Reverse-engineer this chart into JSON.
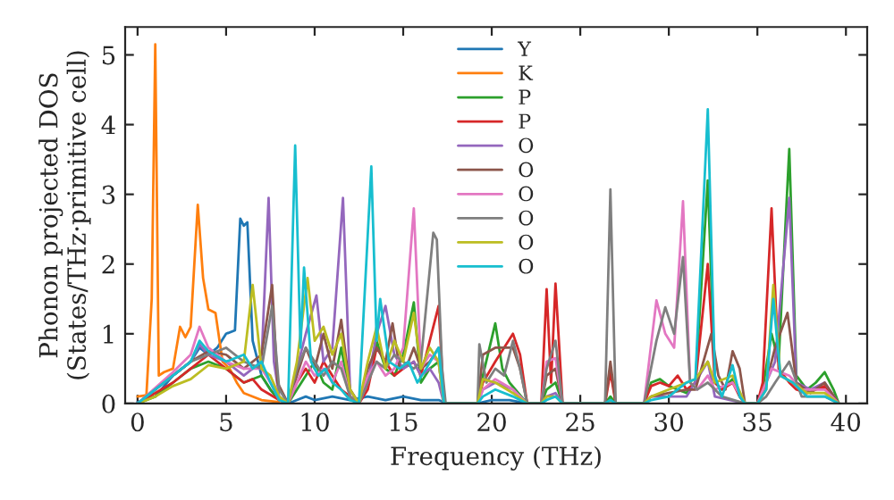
{
  "chart_data": {
    "type": "line",
    "xlabel": "Frequency (THz)",
    "ylabel": "Phonon projected DOS\n(States/THz·primitive cell)",
    "xlim": [
      -0.7,
      41.2
    ],
    "ylim": [
      0,
      5.4
    ],
    "xticks": [
      0,
      5,
      10,
      15,
      20,
      25,
      30,
      35,
      40
    ],
    "yticks": [
      0,
      1,
      2,
      3,
      4,
      5
    ],
    "grid": false,
    "legend": "top",
    "marker": "none",
    "line_style": "solid",
    "series": [
      {
        "name": "Y",
        "color": "#1f77b4",
        "x": [
          0,
          1,
          2,
          3,
          3.5,
          4,
          4.5,
          5,
          5.5,
          5.8,
          6,
          6.2,
          6.5,
          7,
          7.5,
          8,
          8.5,
          9,
          9.5,
          10,
          11,
          12,
          13,
          14,
          15,
          16,
          17,
          17.5,
          19.2,
          20,
          21,
          22
        ],
        "values": [
          0.02,
          0.1,
          0.4,
          0.6,
          0.8,
          0.7,
          0.8,
          1.0,
          1.05,
          2.65,
          2.55,
          2.6,
          0.9,
          0.4,
          0.2,
          0.05,
          0,
          0.05,
          0.1,
          0.05,
          0.1,
          0.05,
          0.1,
          0.05,
          0.1,
          0.05,
          0.05,
          0,
          0,
          0.05,
          0.05,
          0
        ]
      },
      {
        "name": "K",
        "color": "#ff7f0e",
        "x": [
          0,
          0.5,
          0.8,
          1.0,
          1.2,
          1.5,
          2,
          2.4,
          2.7,
          3,
          3.4,
          3.7,
          4.0,
          4.4,
          4.8,
          5.2,
          5.6,
          6,
          7,
          8
        ],
        "values": [
          0.1,
          0.12,
          1.5,
          5.15,
          0.4,
          0.45,
          0.5,
          1.1,
          0.95,
          1.1,
          2.85,
          1.8,
          1.35,
          1.3,
          0.6,
          0.5,
          0.3,
          0.15,
          0.05,
          0.02
        ]
      },
      {
        "name": "P",
        "color": "#2ca02c",
        "x": [
          0,
          1,
          2,
          3,
          4,
          5,
          6,
          7,
          7.5,
          8,
          8.5,
          9,
          9.5,
          10,
          10.5,
          11,
          11.5,
          12,
          12.5,
          13,
          13.5,
          14,
          14.5,
          15,
          15.6,
          16,
          16.5,
          17,
          17.3,
          19.2,
          19.5,
          20.2,
          20.6,
          21,
          21.5,
          22,
          22.8,
          23.1,
          23.6,
          24,
          26.4,
          26.7,
          27,
          28.6,
          29,
          29.5,
          30,
          30.5,
          31,
          31.5,
          32.2,
          32.6,
          33,
          33.6,
          34,
          34.3,
          35,
          35.3,
          35.8,
          36.2,
          36.8,
          37.2,
          37.8,
          38.3,
          38.8,
          39.3,
          39.6
        ],
        "values": [
          0,
          0.1,
          0.3,
          0.5,
          0.6,
          0.5,
          0.3,
          0.4,
          0.2,
          0.05,
          0,
          0.2,
          0.4,
          0.6,
          0.3,
          0.2,
          0.8,
          0.1,
          0,
          0.3,
          0.9,
          0.5,
          0.4,
          0.7,
          1.45,
          0.3,
          0.5,
          0.6,
          0,
          0,
          0.4,
          1.15,
          0.5,
          0.3,
          0.15,
          0,
          0,
          0.2,
          0.3,
          0,
          0,
          0.1,
          0,
          0,
          0.3,
          0.35,
          0.25,
          0.2,
          0.15,
          0.3,
          3.2,
          0.3,
          0.2,
          0.35,
          0.1,
          0,
          0,
          0.2,
          1.0,
          0.6,
          3.65,
          0.4,
          0.2,
          0.3,
          0.45,
          0.2,
          0
        ]
      },
      {
        "name": "P",
        "color": "#d62728",
        "x": [
          0,
          2,
          3,
          4,
          5,
          6,
          6.5,
          7,
          8,
          8.5,
          9,
          9.5,
          10,
          10.5,
          11,
          11.5,
          12,
          12.5,
          13,
          13.5,
          14,
          14.5,
          15,
          15.6,
          16,
          16.5,
          17,
          17.3,
          19.2,
          19.5,
          20.2,
          21.2,
          21.6,
          22,
          22.8,
          23.1,
          23.35,
          23.6,
          24,
          26.4,
          26.7,
          27,
          28.6,
          29,
          29.5,
          30,
          30.5,
          31,
          31.5,
          32.2,
          32.6,
          33,
          33.6,
          34,
          34.3,
          35,
          35.3,
          35.8,
          36.2,
          36.8,
          37.2,
          37.8,
          38.3,
          38.8,
          39.3,
          39.6
        ],
        "values": [
          0,
          0.3,
          0.5,
          0.7,
          0.5,
          0.3,
          0.35,
          0.2,
          0.05,
          0,
          0.3,
          0.5,
          0.3,
          0.6,
          0.4,
          0.2,
          0.1,
          0,
          0.2,
          0.8,
          0.6,
          0.4,
          0.5,
          0.6,
          0.4,
          0.9,
          1.4,
          0,
          0,
          0.3,
          0.6,
          1.0,
          0.7,
          0,
          0,
          1.64,
          0.3,
          1.72,
          0,
          0,
          0.45,
          0,
          0,
          0.25,
          0.3,
          0.25,
          0.4,
          0.2,
          0.3,
          2.0,
          0.3,
          0.2,
          0.3,
          0.1,
          0,
          0,
          0.3,
          2.8,
          0.5,
          0.3,
          0.2,
          0.15,
          0.2,
          0.25,
          0.1,
          0
        ]
      },
      {
        "name": "O",
        "color": "#9467bd",
        "x": [
          0,
          2,
          3,
          3.5,
          4,
          5,
          6,
          7,
          7.4,
          7.7,
          8,
          8.5,
          9,
          9.5,
          10.1,
          10.5,
          11,
          11.6,
          12,
          12.5,
          13,
          13.5,
          14,
          14.5,
          15,
          15.6,
          16,
          16.5,
          17,
          17.3,
          19.2,
          19.5,
          20.2,
          21.2,
          22,
          22.8,
          23.1,
          23.6,
          24,
          28.6,
          29,
          30,
          31,
          32.2,
          32.6,
          34.3,
          35,
          35.5,
          36,
          36.8,
          37.2,
          38,
          38.8,
          39.6
        ],
        "values": [
          0,
          0.4,
          0.6,
          0.85,
          0.7,
          0.6,
          0.4,
          0.6,
          2.95,
          0.6,
          0.1,
          0,
          0.5,
          1.0,
          1.55,
          0.6,
          0.8,
          2.95,
          0.2,
          0,
          0.3,
          1.0,
          1.4,
          0.7,
          0.5,
          0.6,
          0.4,
          0.5,
          0.3,
          0,
          0,
          0.2,
          0.3,
          0.2,
          0,
          0,
          0.1,
          0.15,
          0,
          0,
          0.1,
          0.1,
          0.1,
          0.6,
          0.1,
          0,
          0,
          0.3,
          0.6,
          2.95,
          0.3,
          0.2,
          0.3,
          0
        ]
      },
      {
        "name": "O",
        "color": "#8c564b",
        "x": [
          0,
          2,
          3,
          4,
          5,
          6,
          7,
          7.6,
          7.9,
          8.5,
          9,
          9.5,
          10,
          10.5,
          11,
          11.5,
          12,
          12.5,
          13,
          13.5,
          14,
          14.4,
          14.8,
          15.3,
          15.6,
          16,
          16.5,
          17,
          17.3,
          19.2,
          19.5,
          20.2,
          21.2,
          21.6,
          22,
          22.8,
          23.1,
          23.6,
          24,
          26.4,
          26.7,
          27,
          28.6,
          29,
          30,
          31,
          31.5,
          32.4,
          32.8,
          33.2,
          33.6,
          34,
          34.3,
          35,
          35.5,
          36,
          36.7,
          37.2,
          38,
          38.8,
          39.6
        ],
        "values": [
          0,
          0.4,
          0.6,
          0.75,
          0.7,
          0.5,
          0.7,
          1.7,
          0.3,
          0,
          0.4,
          0.8,
          0.5,
          1.0,
          0.5,
          1.2,
          0.2,
          0,
          0.5,
          0.8,
          0.6,
          1.15,
          0.5,
          0.6,
          0.8,
          0.5,
          0.6,
          0.8,
          0,
          0,
          0.7,
          0.8,
          0.8,
          0.5,
          0,
          0,
          0.4,
          0.5,
          0,
          0,
          0.6,
          0,
          0,
          0.1,
          0.15,
          0.2,
          0.2,
          1.0,
          0.4,
          0.2,
          0.75,
          0.5,
          0,
          0,
          0.3,
          0.8,
          1.3,
          0.3,
          0.15,
          0.3,
          0
        ]
      },
      {
        "name": "O",
        "color": "#e377c2",
        "x": [
          0,
          2,
          3,
          3.5,
          4,
          5,
          6,
          7,
          7.5,
          8,
          8.5,
          9,
          9.5,
          10,
          10.5,
          11,
          11.5,
          12,
          12.5,
          13,
          13.5,
          14,
          14.5,
          15,
          15.6,
          16,
          16.5,
          17,
          17.3,
          19.2,
          19.5,
          20.2,
          21.2,
          22,
          22.8,
          23.1,
          23.6,
          24,
          28.6,
          29.3,
          29.8,
          30.3,
          30.8,
          31.2,
          31.6,
          32.2,
          32.6,
          33.6,
          34.3,
          35,
          35.8,
          36.8,
          37.5,
          38.8,
          39.6
        ],
        "values": [
          0,
          0.45,
          0.7,
          1.1,
          0.8,
          0.6,
          0.5,
          0.5,
          0.3,
          0.05,
          0,
          0.3,
          0.6,
          0.4,
          0.5,
          0.3,
          0.6,
          0.1,
          0,
          0.4,
          0.6,
          0.4,
          0.5,
          0.8,
          2.8,
          0.5,
          0.7,
          0.6,
          0,
          0,
          0.2,
          0.35,
          0.2,
          0,
          0,
          0.6,
          0.65,
          0,
          0,
          1.48,
          1.0,
          0.8,
          2.9,
          0.3,
          0.2,
          0.4,
          0.2,
          0.3,
          0,
          0,
          0.5,
          0.4,
          0.2,
          0.2,
          0
        ]
      },
      {
        "name": "O",
        "color": "#7f7f7f",
        "x": [
          0,
          2,
          3,
          4,
          5,
          6,
          7,
          7.6,
          8,
          8.5,
          9,
          9.5,
          10,
          10.5,
          11,
          11.5,
          12,
          12.5,
          13,
          13.5,
          14,
          14.5,
          15,
          15.6,
          16,
          16.7,
          16.9,
          17.2,
          17.4,
          19.2,
          19.3,
          19.7,
          20.2,
          20.7,
          21.2,
          21.6,
          22,
          22.8,
          23.1,
          23.6,
          24,
          26.4,
          26.7,
          27,
          28.6,
          29.3,
          29.8,
          30.3,
          30.8,
          31.2,
          31.6,
          32.2,
          33,
          34.3,
          35,
          35.5,
          36,
          36.8,
          37.5,
          38.8,
          39.6
        ],
        "values": [
          0,
          0.4,
          0.6,
          0.7,
          0.8,
          0.6,
          0.5,
          1.4,
          0.2,
          0,
          0.5,
          0.8,
          0.6,
          0.4,
          0.6,
          0.5,
          0.1,
          0,
          0.3,
          0.6,
          0.5,
          0.7,
          0.6,
          0.5,
          0.6,
          2.45,
          2.35,
          0.5,
          0,
          0,
          0.85,
          0.3,
          0.5,
          0.4,
          0.9,
          0.5,
          0,
          0,
          0.5,
          0.9,
          0,
          0,
          3.07,
          0,
          0,
          0.9,
          1.38,
          1.0,
          2.1,
          0.3,
          0.2,
          0.3,
          0.1,
          0,
          0,
          0.1,
          0.3,
          0.6,
          0.1,
          0.1,
          0
        ]
      },
      {
        "name": "O",
        "color": "#bcbd22",
        "x": [
          0,
          1,
          2,
          3,
          4,
          5,
          6,
          6.5,
          7,
          7.5,
          8,
          8.5,
          9,
          9.6,
          10,
          10.5,
          11,
          11.5,
          12,
          12.5,
          13,
          13.5,
          14,
          14.5,
          15,
          15.6,
          16,
          16.5,
          17,
          17.3,
          19.2,
          19.5,
          20.2,
          21.2,
          22,
          22.8,
          23.1,
          23.6,
          24,
          28.6,
          29,
          30,
          31,
          31.5,
          32.2,
          32.6,
          33.6,
          34.3,
          35,
          35.5,
          35.9,
          36.3,
          37,
          37.8,
          38.8,
          39.6
        ],
        "values": [
          0,
          0.1,
          0.25,
          0.35,
          0.55,
          0.5,
          0.6,
          1.7,
          0.5,
          0.4,
          0.1,
          0,
          0.6,
          1.8,
          0.9,
          1.1,
          0.7,
          1.0,
          0.2,
          0,
          0.6,
          1.1,
          0.5,
          0.9,
          0.6,
          1.3,
          0.5,
          0.8,
          0.6,
          0,
          0,
          0.35,
          0.3,
          0.15,
          0,
          0,
          0.1,
          0.1,
          0,
          0,
          0.1,
          0.2,
          0.3,
          0.35,
          0.6,
          0.3,
          0.4,
          0,
          0,
          0.2,
          1.7,
          0.4,
          0.3,
          0.15,
          0.15,
          0
        ]
      },
      {
        "name": "O",
        "color": "#17becf",
        "x": [
          0,
          2,
          3,
          3.5,
          4,
          5,
          6,
          6.5,
          7,
          7.5,
          8,
          8.5,
          8.9,
          9.2,
          9.4,
          9.8,
          10.2,
          10.6,
          11,
          11.5,
          12,
          12.5,
          13.2,
          13.5,
          13.7,
          14.2,
          14.8,
          15.3,
          15.8,
          16.3,
          17,
          17.3,
          19.2,
          19.5,
          20.2,
          21.2,
          22,
          22.8,
          23.1,
          23.6,
          24,
          26.4,
          26.7,
          27,
          28.6,
          29,
          30,
          31,
          31.5,
          32.2,
          32.6,
          33,
          33.6,
          34,
          34.3,
          35,
          35.5,
          35.9,
          36.3,
          37,
          37.8,
          38.8,
          39.6
        ],
        "values": [
          0,
          0.4,
          0.6,
          0.9,
          0.75,
          0.6,
          0.7,
          0.5,
          0.6,
          0.3,
          0.05,
          0,
          3.7,
          0.8,
          1.95,
          0.6,
          0.4,
          0.5,
          0.3,
          0.2,
          0.05,
          0,
          3.4,
          0.9,
          1.5,
          0.6,
          0.5,
          0.6,
          0.3,
          0.5,
          0.8,
          0,
          0,
          0.1,
          0.2,
          0.1,
          0,
          0,
          0.05,
          0.1,
          0,
          0,
          0.05,
          0,
          0,
          0.05,
          0.1,
          0.3,
          0.35,
          4.22,
          0.4,
          0.1,
          0.55,
          0.1,
          0,
          0,
          0.2,
          1.5,
          0.4,
          0.3,
          0.1,
          0.1,
          0
        ]
      }
    ]
  }
}
